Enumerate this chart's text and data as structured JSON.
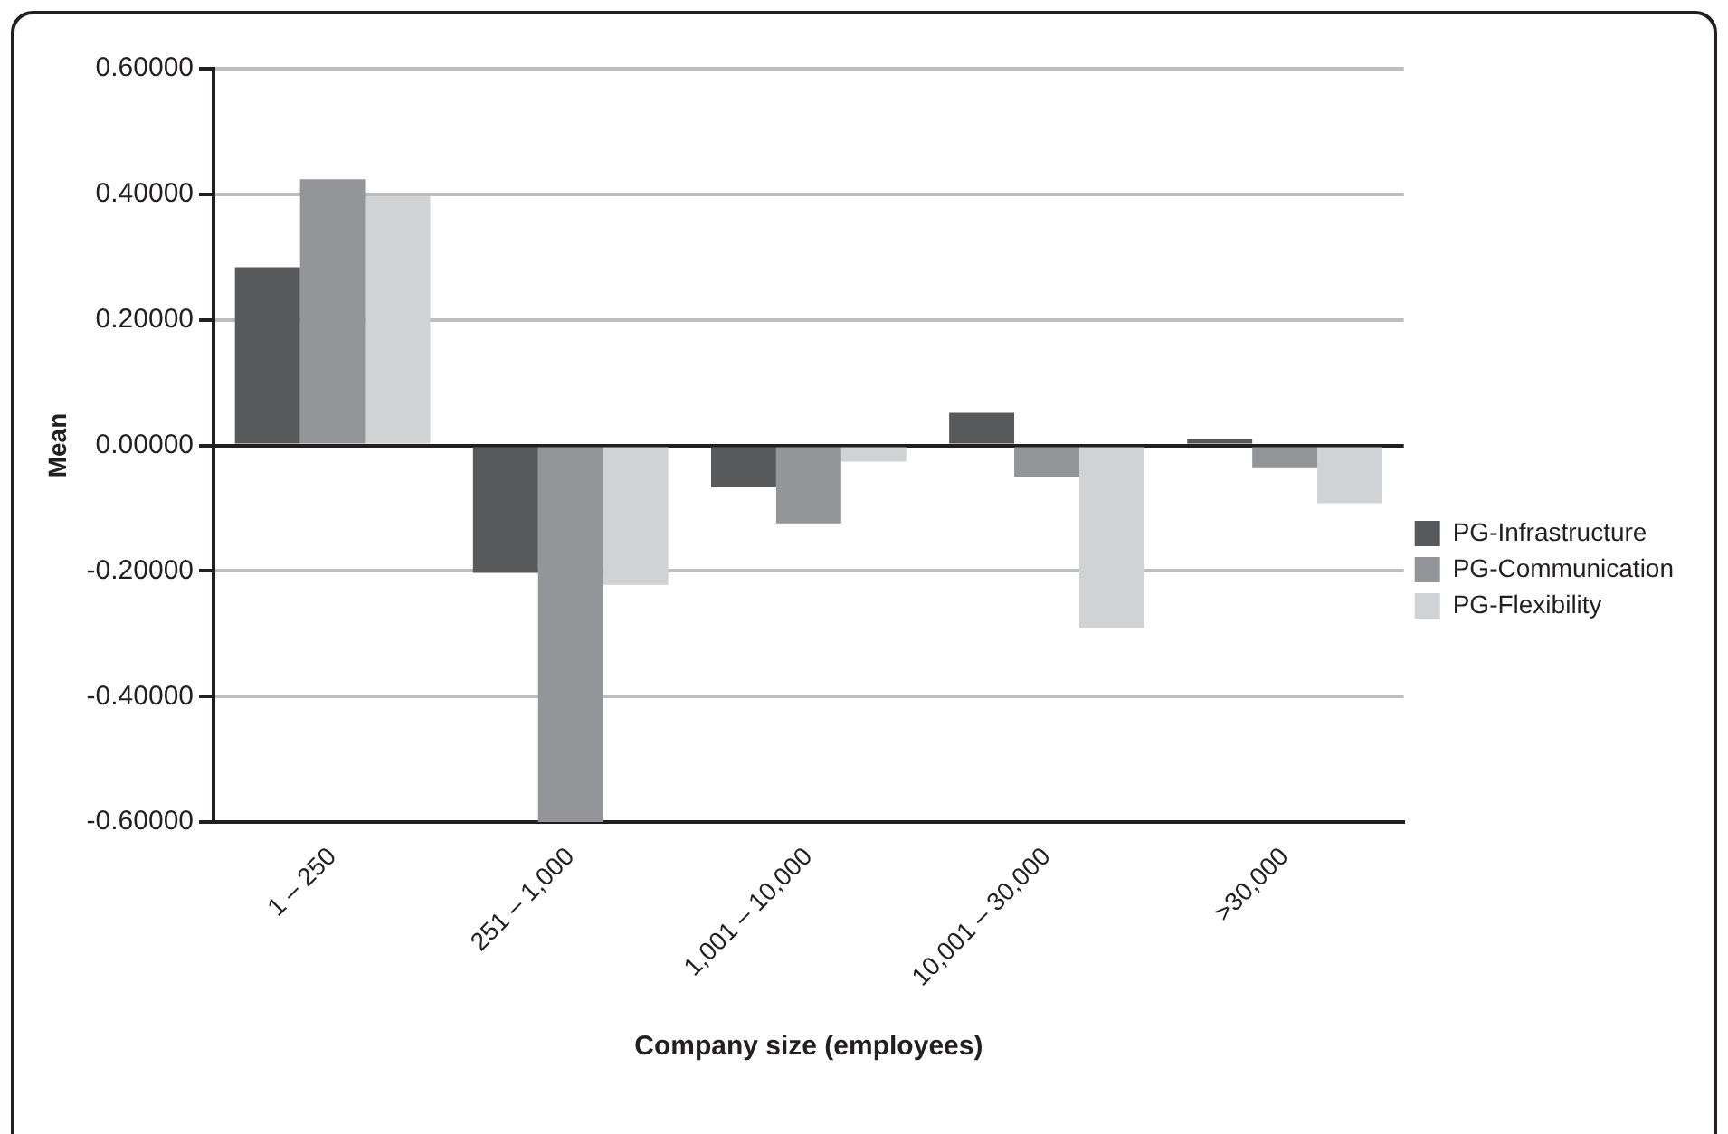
{
  "chart_data": {
    "type": "bar",
    "xlabel": "Company size (employees)",
    "ylabel": "Mean",
    "categories": [
      "1 – 250",
      "251 – 1,000",
      "1,001 – 10,000",
      "10,001 – 30,000",
      ">30,000"
    ],
    "series": [
      {
        "name": "PG-Infrastructure",
        "color": "#58595b",
        "values": [
          0.284,
          -0.203,
          -0.067,
          0.052,
          0.01
        ]
      },
      {
        "name": "PG-Communication",
        "color": "#939598",
        "values": [
          0.424,
          -0.6,
          -0.124,
          -0.05,
          -0.035
        ]
      },
      {
        "name": "PG-Flexibility",
        "color": "#d1d2d4",
        "values": [
          0.397,
          -0.222,
          -0.026,
          -0.291,
          -0.092
        ]
      }
    ],
    "ylim": [
      -0.6,
      0.6
    ],
    "yticks": [
      {
        "value": -0.6,
        "label": "-0.60000"
      },
      {
        "value": -0.4,
        "label": "-0.40000"
      },
      {
        "value": -0.2,
        "label": "-0.20000"
      },
      {
        "value": 0,
        "label": "0.00000"
      },
      {
        "value": 0.2,
        "label": "0.20000"
      },
      {
        "value": 0.4,
        "label": "0.40000"
      },
      {
        "value": 0.6,
        "label": "0.60000"
      }
    ],
    "grid": "y",
    "legend": "right"
  }
}
